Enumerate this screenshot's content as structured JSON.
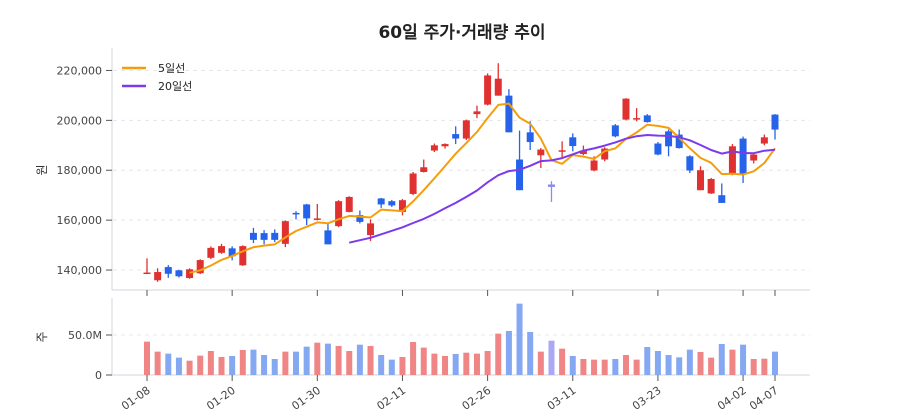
{
  "chart_data": {
    "type": "candlestick",
    "title": "60일 주가·거래량 추이",
    "price_panel": {
      "ylabel": "원",
      "ylim": [
        132000,
        229000
      ],
      "yticks": [
        140000,
        160000,
        180000,
        200000,
        220000
      ],
      "ytick_labels": [
        "140,000",
        "160,000",
        "180,000",
        "200,000",
        "220,000"
      ],
      "grid": true
    },
    "volume_panel": {
      "ylabel": "주",
      "ylim": [
        0,
        95000000
      ],
      "yticks": [
        0,
        50000000
      ],
      "ytick_labels": [
        "0",
        "50.0M"
      ],
      "grid": true
    },
    "legend": {
      "placement": "top-left",
      "entries": [
        {
          "name": "5일선",
          "window": 5,
          "color": "#f59e0b"
        },
        {
          "name": "20일선",
          "window": 20,
          "color": "#7c3aed"
        }
      ]
    },
    "colors": {
      "up": "#e03131",
      "down": "#2563eb",
      "neutral": "#8b8cf0",
      "vol_up": "#ef8585",
      "vol_down": "#85a8f2",
      "vol_neutral": "#aaa8f5"
    },
    "xtick_labels": [
      "01-08",
      "01-20",
      "01-30",
      "02-11",
      "02-26",
      "03-11",
      "03-23",
      "04-02",
      "04-07"
    ],
    "dates": [
      "01-08",
      "01-09",
      "01-12",
      "01-13",
      "01-14",
      "01-15",
      "01-16",
      "01-19",
      "01-20",
      "01-21",
      "01-22",
      "01-23",
      "01-26",
      "01-27",
      "01-28",
      "01-29",
      "01-30",
      "02-02",
      "02-03",
      "02-04",
      "02-05",
      "02-06",
      "02-09",
      "02-10",
      "02-11",
      "02-12",
      "02-13",
      "02-19",
      "02-20",
      "02-23",
      "02-24",
      "02-25",
      "02-26",
      "02-27",
      "03-03",
      "03-04",
      "03-05",
      "03-06",
      "03-09",
      "03-10",
      "03-11",
      "03-12",
      "03-13",
      "03-16",
      "03-17",
      "03-18",
      "03-19",
      "03-20",
      "03-23",
      "03-24",
      "03-25",
      "03-26",
      "03-27",
      "03-30",
      "03-31",
      "04-01",
      "04-02",
      "04-03",
      "04-06",
      "04-07"
    ],
    "neutral_indices": [
      38
    ],
    "open": [
      138800,
      135900,
      141200,
      139900,
      136800,
      138700,
      144900,
      146900,
      148700,
      141900,
      154900,
      154800,
      154900,
      150500,
      162900,
      166300,
      160200,
      155900,
      157600,
      163300,
      162000,
      154000,
      168700,
      167600,
      163300,
      170500,
      179300,
      187900,
      189600,
      194500,
      192700,
      202500,
      206300,
      209900,
      209900,
      184300,
      195200,
      186000,
      174300,
      187700,
      193200,
      186500,
      179900,
      184300,
      198000,
      200300,
      200500,
      202000,
      190700,
      195600,
      194300,
      185600,
      172000,
      170700,
      170000,
      178500,
      192700,
      183900,
      190700,
      202300
    ],
    "high": [
      144700,
      140700,
      142000,
      140100,
      140700,
      144300,
      149500,
      150500,
      149500,
      149900,
      156900,
      156000,
      156300,
      159900,
      163600,
      166500,
      166500,
      158900,
      168000,
      169600,
      163900,
      160300,
      168900,
      168100,
      168500,
      179300,
      184300,
      190700,
      190800,
      197600,
      200300,
      205900,
      218800,
      222900,
      212500,
      195900,
      199600,
      188900,
      175600,
      191600,
      194800,
      189900,
      185600,
      189200,
      198500,
      208900,
      204900,
      202500,
      191300,
      196300,
      196300,
      186000,
      181600,
      176900,
      174700,
      190500,
      193500,
      186900,
      194300,
      202500
    ],
    "low": [
      138500,
      135300,
      136900,
      137000,
      136500,
      138400,
      144400,
      146500,
      143900,
      141600,
      150800,
      150300,
      151200,
      149200,
      160300,
      158000,
      159900,
      150300,
      157200,
      163100,
      158700,
      151600,
      164900,
      165300,
      161900,
      170000,
      179100,
      187300,
      188700,
      190500,
      192100,
      200900,
      206000,
      209900,
      195200,
      172000,
      188100,
      180900,
      167300,
      185200,
      187600,
      186000,
      179600,
      183600,
      193200,
      200000,
      199600,
      199100,
      186000,
      185600,
      188700,
      178900,
      172000,
      170500,
      166900,
      178000,
      174900,
      182700,
      190000,
      192300
    ],
    "close": [
      139000,
      139200,
      138500,
      137500,
      140300,
      144000,
      148900,
      149600,
      145500,
      149600,
      152100,
      152100,
      152100,
      159600,
      162300,
      160700,
      160700,
      150300,
      167600,
      169300,
      159300,
      158700,
      166300,
      165900,
      168000,
      178700,
      181200,
      190000,
      190500,
      192700,
      200000,
      203600,
      218000,
      216700,
      195200,
      172000,
      191300,
      188300,
      173300,
      188000,
      189700,
      187900,
      183900,
      188700,
      193600,
      208700,
      200900,
      199300,
      186300,
      189600,
      188900,
      179900,
      180000,
      176500,
      166900,
      189600,
      178500,
      186300,
      193200,
      196300
    ],
    "volume": [
      41700000,
      29200000,
      26700000,
      21700000,
      17900000,
      24200000,
      30000000,
      22500000,
      23800000,
      31300000,
      31700000,
      25000000,
      20000000,
      29200000,
      29200000,
      35400000,
      40400000,
      39200000,
      36300000,
      30000000,
      37900000,
      36300000,
      25000000,
      19200000,
      22500000,
      41300000,
      34200000,
      26700000,
      23800000,
      26300000,
      27900000,
      26700000,
      30000000,
      51700000,
      55000000,
      89200000,
      53800000,
      29200000,
      42900000,
      32900000,
      23800000,
      20000000,
      19200000,
      19200000,
      20000000,
      25000000,
      19200000,
      35000000,
      30000000,
      25000000,
      22100000,
      31700000,
      28800000,
      21700000,
      38800000,
      31700000,
      37900000,
      20000000,
      20400000,
      29200000
    ]
  }
}
